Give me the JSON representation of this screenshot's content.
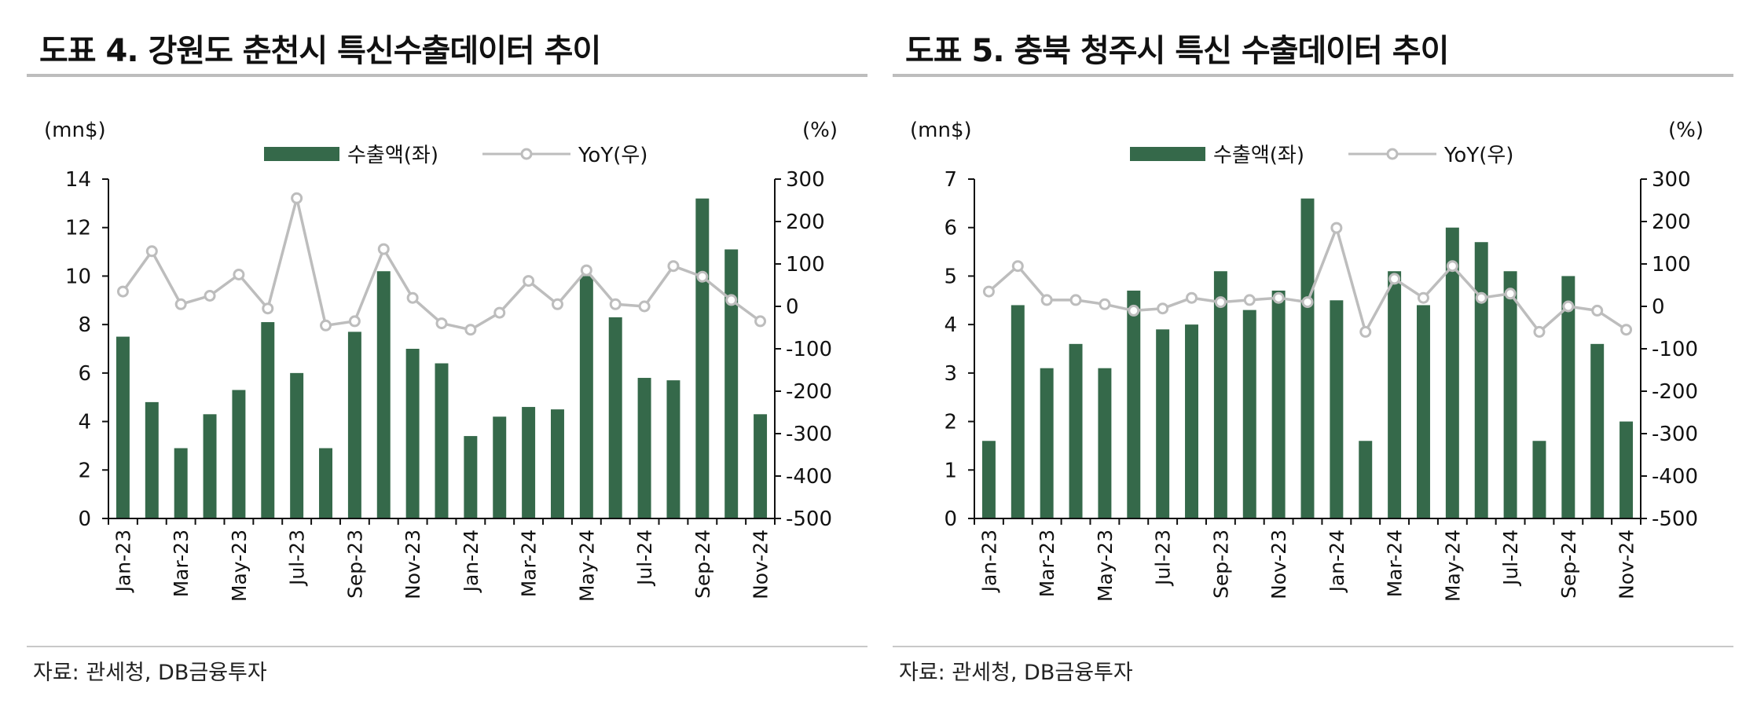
{
  "colors": {
    "bar": "#35694a",
    "line": "#bdbdbd",
    "marker_fill": "#ffffff",
    "axis": "#111111",
    "rule": "#bdbdbd"
  },
  "panels": [
    {
      "title": "도표 4. 강원도 춘천시 특신수출데이터 추이",
      "source": "자료:  관세청, DB금융투자",
      "chart_data": {
        "type": "bar+line",
        "left_unit": "(mn$)",
        "right_unit": "(%)",
        "legend": {
          "bar": "수출액(좌)",
          "line": "YoY(우)"
        },
        "categories": [
          "Jan-23",
          "Feb-23",
          "Mar-23",
          "Apr-23",
          "May-23",
          "Jun-23",
          "Jul-23",
          "Aug-23",
          "Sep-23",
          "Oct-23",
          "Nov-23",
          "Dec-23",
          "Jan-24",
          "Feb-24",
          "Mar-24",
          "Apr-24",
          "May-24",
          "Jun-24",
          "Jul-24",
          "Aug-24",
          "Sep-24",
          "Oct-24",
          "Nov-24"
        ],
        "x_tick_labels": [
          "Jan-23",
          "",
          "Mar-23",
          "",
          "May-23",
          "",
          "Jul-23",
          "",
          "Sep-23",
          "",
          "Nov-23",
          "",
          "Jan-24",
          "",
          "Mar-24",
          "",
          "May-24",
          "",
          "Jul-24",
          "",
          "Sep-24",
          "",
          "Nov-24"
        ],
        "bar_values": [
          7.5,
          4.8,
          2.9,
          4.3,
          5.3,
          8.1,
          6.0,
          2.9,
          7.7,
          10.2,
          7.0,
          6.4,
          3.4,
          4.2,
          4.6,
          4.5,
          10.0,
          8.3,
          5.8,
          5.7,
          13.2,
          11.1,
          4.3
        ],
        "line_values": [
          35,
          130,
          5,
          25,
          75,
          -5,
          255,
          -45,
          -35,
          135,
          20,
          -40,
          -55,
          -15,
          60,
          5,
          85,
          5,
          0,
          95,
          70,
          15,
          -35
        ],
        "ylim_left": [
          0,
          14
        ],
        "yticks_left": [
          "0",
          "2",
          "4",
          "6",
          "8",
          "10",
          "12",
          "14"
        ],
        "ylim_right": [
          -500,
          300
        ],
        "yticks_right": [
          "-500",
          "-400",
          "-300",
          "-200",
          "-100",
          "0",
          "100",
          "200",
          "300"
        ]
      }
    },
    {
      "title": "도표 5. 충북 청주시 특신 수출데이터 추이",
      "source": "자료:  관세청, DB금융투자",
      "chart_data": {
        "type": "bar+line",
        "left_unit": "(mn$)",
        "right_unit": "(%)",
        "legend": {
          "bar": "수출액(좌)",
          "line": "YoY(우)"
        },
        "categories": [
          "Jan-23",
          "Feb-23",
          "Mar-23",
          "Apr-23",
          "May-23",
          "Jun-23",
          "Jul-23",
          "Aug-23",
          "Sep-23",
          "Oct-23",
          "Nov-23",
          "Dec-23",
          "Jan-24",
          "Feb-24",
          "Mar-24",
          "Apr-24",
          "May-24",
          "Jun-24",
          "Jul-24",
          "Aug-24",
          "Sep-24",
          "Oct-24",
          "Nov-24"
        ],
        "x_tick_labels": [
          "Jan-23",
          "",
          "Mar-23",
          "",
          "May-23",
          "",
          "Jul-23",
          "",
          "Sep-23",
          "",
          "Nov-23",
          "",
          "Jan-24",
          "",
          "Mar-24",
          "",
          "May-24",
          "",
          "Jul-24",
          "",
          "Sep-24",
          "",
          "Nov-24"
        ],
        "bar_values": [
          1.6,
          4.4,
          3.1,
          3.6,
          3.1,
          4.7,
          3.9,
          4.0,
          5.1,
          4.3,
          4.7,
          6.6,
          4.5,
          1.6,
          5.1,
          4.4,
          6.0,
          5.7,
          5.1,
          1.6,
          5.0,
          3.6,
          2.0
        ],
        "line_values": [
          35,
          95,
          15,
          15,
          5,
          -10,
          -5,
          20,
          10,
          15,
          20,
          10,
          185,
          -60,
          65,
          20,
          95,
          20,
          30,
          -60,
          0,
          -10,
          -55
        ],
        "ylim_left": [
          0,
          7
        ],
        "yticks_left": [
          "0",
          "1",
          "2",
          "3",
          "4",
          "5",
          "6",
          "7"
        ],
        "ylim_right": [
          -500,
          300
        ],
        "yticks_right": [
          "-500",
          "-400",
          "-300",
          "-200",
          "-100",
          "0",
          "100",
          "200",
          "300"
        ]
      }
    }
  ]
}
